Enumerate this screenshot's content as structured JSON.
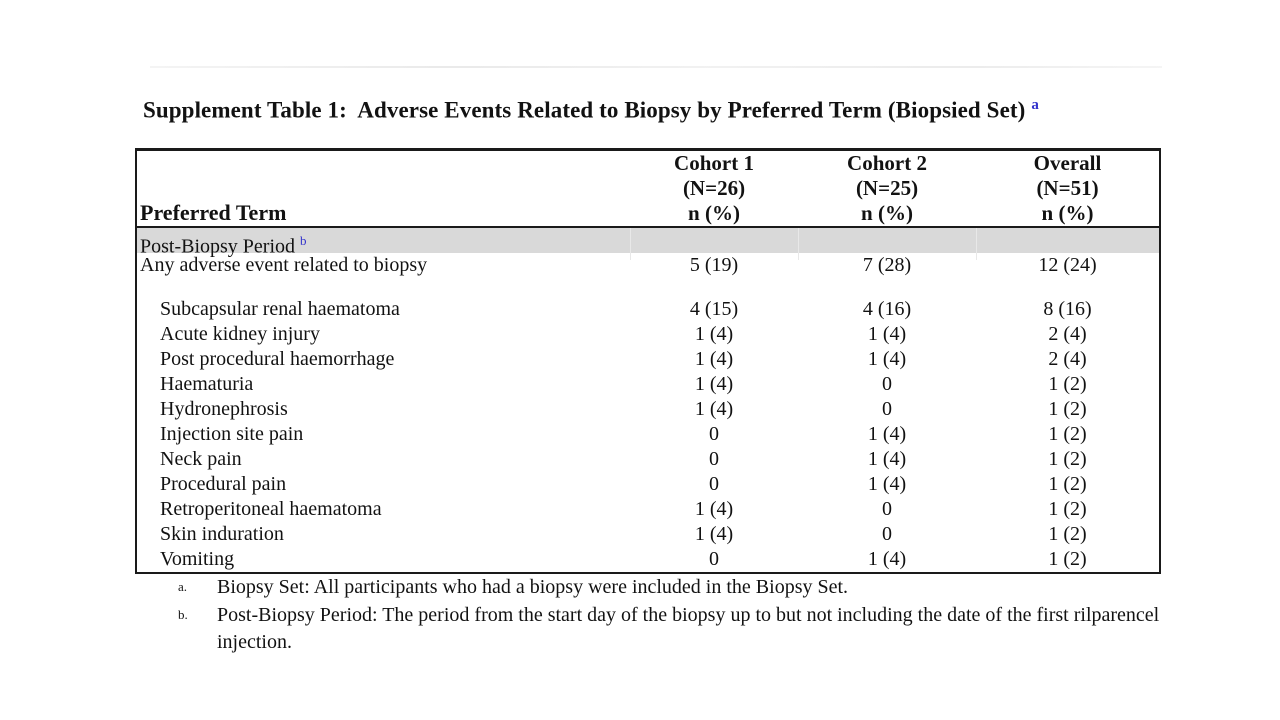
{
  "title": {
    "text": "Supplement Table 1:  Adverse Events Related to Biopsy by Preferred Term (Biopsied Set)",
    "superscript": "a"
  },
  "colors": {
    "superscript_blue": "#3333cc",
    "section_band_gray": "#d9d9d9",
    "table_border": "#1a1a1a",
    "text": "#121212"
  },
  "table": {
    "row_header": "Preferred Term",
    "columns": [
      {
        "name": "Cohort 1",
        "n": "(N=26)",
        "stat": "n (%)"
      },
      {
        "name": "Cohort 2",
        "n": "(N=25)",
        "stat": "n (%)"
      },
      {
        "name": "Overall",
        "n": "(N=51)",
        "stat": "n (%)"
      }
    ],
    "section_row": {
      "label": "Post-Biopsy Period",
      "superscript": "b"
    },
    "rows": [
      {
        "label": "Any adverse event related to biopsy",
        "indent": false,
        "values": [
          "5 (19)",
          "7 (28)",
          "12 (24)"
        ]
      },
      {
        "spacer": true
      },
      {
        "label": "Subcapsular renal haematoma",
        "indent": true,
        "values": [
          "4 (15)",
          "4 (16)",
          "8 (16)"
        ]
      },
      {
        "label": "Acute kidney injury",
        "indent": true,
        "values": [
          "1 (4)",
          "1 (4)",
          "2 (4)"
        ]
      },
      {
        "label": "Post procedural haemorrhage",
        "indent": true,
        "values": [
          "1 (4)",
          "1 (4)",
          "2 (4)"
        ]
      },
      {
        "label": "Haematuria",
        "indent": true,
        "values": [
          "1 (4)",
          "0",
          "1 (2)"
        ]
      },
      {
        "label": "Hydronephrosis",
        "indent": true,
        "values": [
          "1 (4)",
          "0",
          "1 (2)"
        ]
      },
      {
        "label": "Injection site pain",
        "indent": true,
        "values": [
          "0",
          "1 (4)",
          "1 (2)"
        ]
      },
      {
        "label": "Neck pain",
        "indent": true,
        "values": [
          "0",
          "1 (4)",
          "1 (2)"
        ]
      },
      {
        "label": "Procedural pain",
        "indent": true,
        "values": [
          "0",
          "1 (4)",
          "1 (2)"
        ]
      },
      {
        "label": "Retroperitoneal haematoma",
        "indent": true,
        "values": [
          "1 (4)",
          "0",
          "1 (2)"
        ]
      },
      {
        "label": "Skin induration",
        "indent": true,
        "values": [
          "1 (4)",
          "0",
          "1 (2)"
        ]
      },
      {
        "label": "Vomiting",
        "indent": true,
        "values": [
          "0",
          "1 (4)",
          "1 (2)"
        ]
      }
    ]
  },
  "footnotes": [
    {
      "marker": "a.",
      "text": "Biopsy Set: All participants who had a biopsy were included in the Biopsy Set."
    },
    {
      "marker": "b.",
      "text": "Post-Biopsy Period: The period from the start day of the biopsy up to but not including the date of the first rilparencel injection."
    }
  ]
}
